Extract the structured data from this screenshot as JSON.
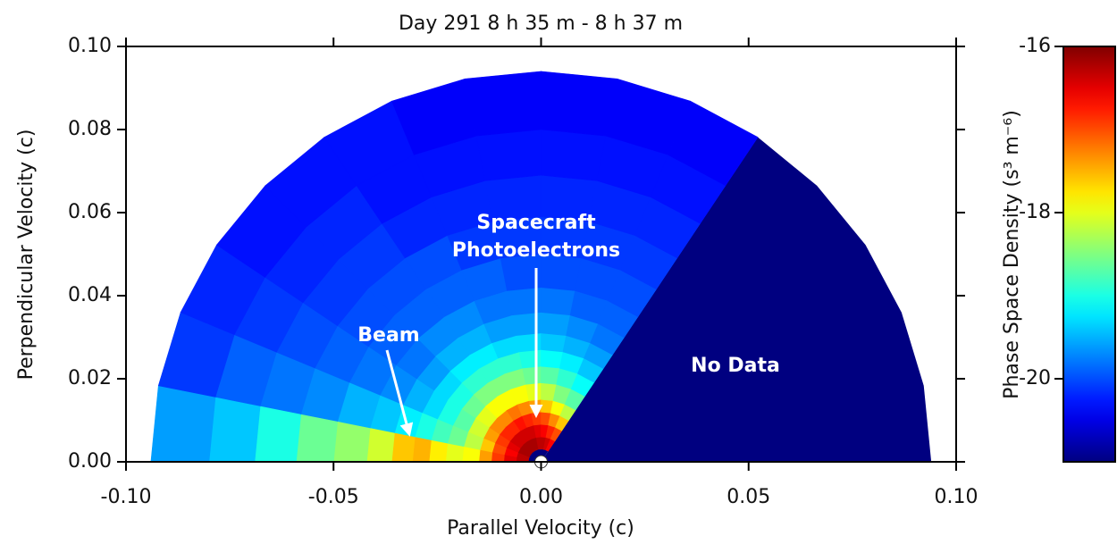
{
  "chart_data": {
    "type": "polar_heatmap",
    "title": "Day 291  8 h 35 m - 8 h 37 m",
    "xlabel": "Parallel Velocity (c)",
    "ylabel": "Perpendicular Velocity (c)",
    "xlim": [
      -0.1,
      0.1
    ],
    "xticks": [
      {
        "value": -0.1,
        "label": "-0.10"
      },
      -0.05,
      {
        "value": 0,
        "label": "0.00"
      },
      0.05,
      {
        "value": 0.1,
        "label": "0.10"
      }
    ],
    "ylim": [
      0,
      0.1
    ],
    "yticks": [
      {
        "value": 0,
        "label": "0.00"
      },
      0.02,
      0.04,
      0.06,
      0.08,
      {
        "value": 0.1,
        "label": "0.10"
      }
    ],
    "colormap": "jet",
    "colorbar_label": "Phase Space Density (s³ m⁻⁶)",
    "clim": [
      -21,
      -16
    ],
    "cticks": [
      -16,
      -18,
      -20
    ],
    "radial_edges": [
      0.003,
      0.006,
      0.009,
      0.012,
      0.015,
      0.019,
      0.023,
      0.027,
      0.031,
      0.036,
      0.042,
      0.05,
      0.059,
      0.069,
      0.08,
      0.094
    ],
    "angle_edges": [
      180,
      168.75,
      157.5,
      146.25,
      135,
      123.75,
      112.5,
      101.25,
      90,
      78.75,
      67.5,
      56.25
    ],
    "values": [
      [
        -16.3,
        -16.5,
        -16.9,
        -17.4,
        -17.9,
        -18.0,
        -17.8,
        -17.5,
        -17.6,
        -18.1,
        -18.4,
        -18.6,
        -19.0,
        -19.4,
        -19.6
      ],
      [
        -16.3,
        -16.6,
        -17.0,
        -17.6,
        -18.2,
        -18.6,
        -18.8,
        -19.0,
        -19.2,
        -19.4,
        -19.5,
        -19.7,
        -19.8,
        -19.9,
        -20.1
      ],
      [
        -16.2,
        -16.5,
        -16.9,
        -17.4,
        -18.1,
        -18.7,
        -19.0,
        -19.3,
        -19.5,
        -19.7,
        -19.8,
        -19.9,
        -20.0,
        -20.1,
        -20.2
      ],
      [
        -16.2,
        -16.4,
        -16.8,
        -17.3,
        -18.0,
        -18.6,
        -19.0,
        -19.3,
        -19.6,
        -19.8,
        -19.9,
        -20.0,
        -20.1,
        -20.2,
        -20.3
      ],
      [
        -16.2,
        -16.4,
        -16.8,
        -17.3,
        -17.9,
        -18.5,
        -18.9,
        -19.2,
        -19.5,
        -19.7,
        -19.9,
        -20.0,
        -20.1,
        -20.2,
        -20.3
      ],
      [
        -16.2,
        -16.4,
        -16.7,
        -17.2,
        -17.9,
        -18.5,
        -18.9,
        -19.2,
        -19.5,
        -19.7,
        -19.9,
        -20.0,
        -20.2,
        -20.3,
        -20.3
      ],
      [
        -16.2,
        -16.4,
        -16.8,
        -17.3,
        -17.9,
        -18.5,
        -18.9,
        -19.3,
        -19.6,
        -19.8,
        -19.9,
        -20.1,
        -20.2,
        -20.3,
        -20.4
      ],
      [
        -16.3,
        -16.5,
        -16.9,
        -17.4,
        -18.0,
        -18.6,
        -19.0,
        -19.3,
        -19.6,
        -19.8,
        -20.0,
        -20.1,
        -20.2,
        -20.3,
        -20.4
      ],
      [
        -16.3,
        -16.6,
        -17.0,
        -17.6,
        -18.2,
        -18.7,
        -19.1,
        -19.4,
        -19.6,
        -19.8,
        -20.0,
        -20.1,
        -20.2,
        -20.3,
        -20.4
      ],
      [
        -16.4,
        -16.8,
        -17.3,
        -17.9,
        -18.5,
        -18.9,
        -19.2,
        -19.5,
        -19.7,
        -19.9,
        -20.0,
        -20.1,
        -20.2,
        -20.3,
        -20.4
      ],
      [
        -16.6,
        -17.0,
        -17.6,
        -18.2,
        -18.7,
        -19.1,
        -19.4,
        -19.6,
        -19.8,
        -19.9,
        -20.0,
        -20.1,
        -20.2,
        -20.3,
        -20.4
      ]
    ],
    "annotations": {
      "photoelectrons": [
        "Spacecraft",
        "Photoelectrons"
      ],
      "beam": "Beam",
      "no_data": "No Data"
    }
  }
}
